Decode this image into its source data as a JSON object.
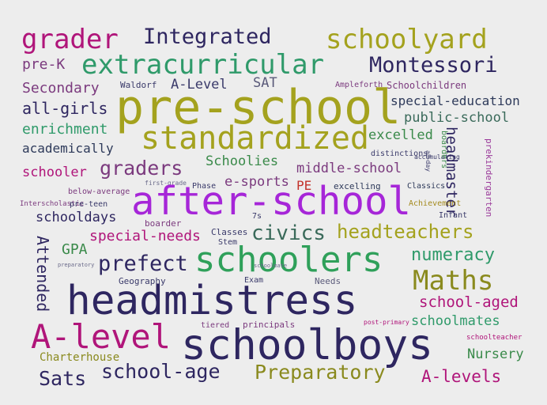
{
  "words": [
    {
      "text": "grader",
      "color": "#b0157a"
    },
    {
      "text": "Integrated",
      "color": "#2e2660"
    },
    {
      "text": "schoolyard",
      "color": "#a4a21e"
    },
    {
      "text": "pre-K",
      "color": "#7b3a7e"
    },
    {
      "text": "extracurricular",
      "color": "#2f9a6a"
    },
    {
      "text": "Montessori",
      "color": "#2e2660"
    },
    {
      "text": "Secondary",
      "color": "#7b3a7e"
    },
    {
      "text": "Waldorf",
      "color": "#3a3a6a"
    },
    {
      "text": "A-Level",
      "color": "#3a3a6a"
    },
    {
      "text": "SAT",
      "color": "#5a5a7a"
    },
    {
      "text": "Ampleforth",
      "color": "#7b3a7e"
    },
    {
      "text": "Schoolchildren",
      "color": "#7b3a7e"
    },
    {
      "text": "all-girls",
      "color": "#2e2660"
    },
    {
      "text": "pre-school",
      "color": "#a4a21e"
    },
    {
      "text": "special-education",
      "color": "#2e3a5a"
    },
    {
      "text": "enrichment",
      "color": "#2f9a6a"
    },
    {
      "text": "public-school",
      "color": "#3a6a5a"
    },
    {
      "text": "academically",
      "color": "#2e3a5a"
    },
    {
      "text": "standardized",
      "color": "#a4a21e"
    },
    {
      "text": "excelled",
      "color": "#3a8a4a"
    },
    {
      "text": "distinctions",
      "color": "#3a3a6a"
    },
    {
      "text": "accumulating",
      "color": "#3a3a6a"
    },
    {
      "text": "boarders",
      "color": "#3a8a4a"
    },
    {
      "text": "all-day",
      "color": "#3a3a6a"
    },
    {
      "text": "headmaster",
      "color": "#2e2660"
    },
    {
      "text": "prekindergarten",
      "color": "#9a3a9a"
    },
    {
      "text": "schooler",
      "color": "#b0157a"
    },
    {
      "text": "graders",
      "color": "#7b3a7e"
    },
    {
      "text": "Schoolies",
      "color": "#3a8a4a"
    },
    {
      "text": "middle-school",
      "color": "#7b3a7e"
    },
    {
      "text": "first-grade",
      "color": "#6a6a8a"
    },
    {
      "text": "Phase",
      "color": "#3a3a6a"
    },
    {
      "text": "e-sports",
      "color": "#7b3a7e"
    },
    {
      "text": "PE",
      "color": "#c3322b"
    },
    {
      "text": "excelling",
      "color": "#2e3a5a"
    },
    {
      "text": "Classics",
      "color": "#2e3a5a"
    },
    {
      "text": "below-average",
      "color": "#7b3a7e"
    },
    {
      "text": "Interscholastic",
      "color": "#7b3a7e"
    },
    {
      "text": "pre-teen",
      "color": "#3a3a6a"
    },
    {
      "text": "after-school",
      "color": "#a626d8"
    },
    {
      "text": "Achievement",
      "color": "#a48a1e"
    },
    {
      "text": "Infant",
      "color": "#3a3a6a"
    },
    {
      "text": "schooldays",
      "color": "#2e2660"
    },
    {
      "text": "boarder",
      "color": "#7b3a7e"
    },
    {
      "text": "7s",
      "color": "#3a3a6a"
    },
    {
      "text": "Classes",
      "color": "#3a3a6a"
    },
    {
      "text": "Stem",
      "color": "#3a3a6a"
    },
    {
      "text": "civics",
      "color": "#3a6a5a"
    },
    {
      "text": "headteachers",
      "color": "#a4a21e"
    },
    {
      "text": "special-needs",
      "color": "#b0157a"
    },
    {
      "text": "Attended",
      "color": "#2e2660"
    },
    {
      "text": "GPA",
      "color": "#3a8a4a"
    },
    {
      "text": "prefect",
      "color": "#2e2660"
    },
    {
      "text": "schoolers",
      "color": "#2fa05a"
    },
    {
      "text": "numeracy",
      "color": "#2f9a6a"
    },
    {
      "text": "preparatory",
      "color": "#6a6a8a"
    },
    {
      "text": "schoolmate",
      "color": "#6a6a8a"
    },
    {
      "text": "Maths",
      "color": "#8a8a1e"
    },
    {
      "text": "Geography",
      "color": "#3a3a6a"
    },
    {
      "text": "Exam",
      "color": "#3a3a6a"
    },
    {
      "text": "Needs",
      "color": "#5a5a7a"
    },
    {
      "text": "headmistress",
      "color": "#2e2660"
    },
    {
      "text": "school-aged",
      "color": "#b0157a"
    },
    {
      "text": "schoolmates",
      "color": "#2f9a6a"
    },
    {
      "text": "post-primary",
      "color": "#b0157a"
    },
    {
      "text": "tiered",
      "color": "#7b3a7e"
    },
    {
      "text": "principals",
      "color": "#7b3a7e"
    },
    {
      "text": "A-level",
      "color": "#b0157a"
    },
    {
      "text": "schoolboys",
      "color": "#2e2660"
    },
    {
      "text": "schoolteacher",
      "color": "#b0157a"
    },
    {
      "text": "Charterhouse",
      "color": "#8a8a1e"
    },
    {
      "text": "Nursery",
      "color": "#3a8a4a"
    },
    {
      "text": "school-age",
      "color": "#2e2660"
    },
    {
      "text": "Preparatory",
      "color": "#8a8a1e"
    },
    {
      "text": "Sats",
      "color": "#2e2660"
    },
    {
      "text": "A-levels",
      "color": "#b0157a"
    }
  ]
}
